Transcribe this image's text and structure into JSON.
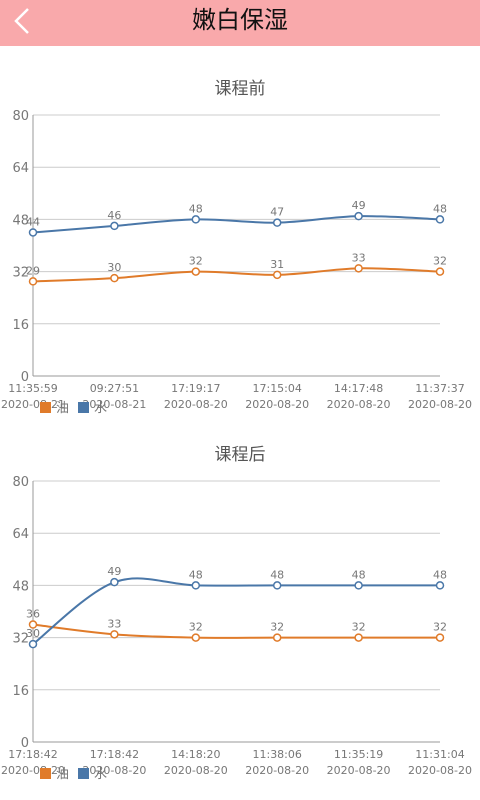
{
  "header": {
    "title": "嫩白保湿",
    "back_icon": "chevron-left-icon"
  },
  "colors": {
    "header_bg": "#f9a9ab",
    "oil": "#e07b2a",
    "water": "#4a77a8",
    "grid": "#cccccc"
  },
  "chart_data": [
    {
      "type": "line",
      "title": "课程前",
      "ylim": [
        0,
        80
      ],
      "yticks": [
        0,
        16,
        32,
        48,
        64,
        80
      ],
      "grid": true,
      "legend": "bottom-left",
      "x_time": [
        "11:35:59",
        "09:27:51",
        "17:19:17",
        "17:15:04",
        "14:17:48",
        "11:37:37"
      ],
      "x_date": [
        "2020-08-21",
        "2020-08-21",
        "2020-08-20",
        "2020-08-20",
        "2020-08-20",
        "2020-08-20"
      ],
      "series": [
        {
          "name": "油",
          "color": "#e07b2a",
          "values": [
            29,
            30,
            32,
            31,
            33,
            32
          ]
        },
        {
          "name": "水",
          "color": "#4a77a8",
          "values": [
            44,
            46,
            48,
            47,
            49,
            48
          ]
        }
      ]
    },
    {
      "type": "line",
      "title": "课程后",
      "ylim": [
        0,
        80
      ],
      "yticks": [
        0,
        16,
        32,
        48,
        64,
        80
      ],
      "grid": true,
      "legend": "bottom-left",
      "x_time": [
        "17:18:42",
        "17:18:42",
        "14:18:20",
        "11:38:06",
        "11:35:19",
        "11:31:04"
      ],
      "x_date": [
        "2020-08-20",
        "2020-08-20",
        "2020-08-20",
        "2020-08-20",
        "2020-08-20",
        "2020-08-20"
      ],
      "series": [
        {
          "name": "油",
          "color": "#e07b2a",
          "values": [
            36,
            33,
            32,
            32,
            32,
            32
          ]
        },
        {
          "name": "水",
          "color": "#4a77a8",
          "values": [
            30,
            49,
            48,
            48,
            48,
            48
          ]
        }
      ]
    }
  ]
}
